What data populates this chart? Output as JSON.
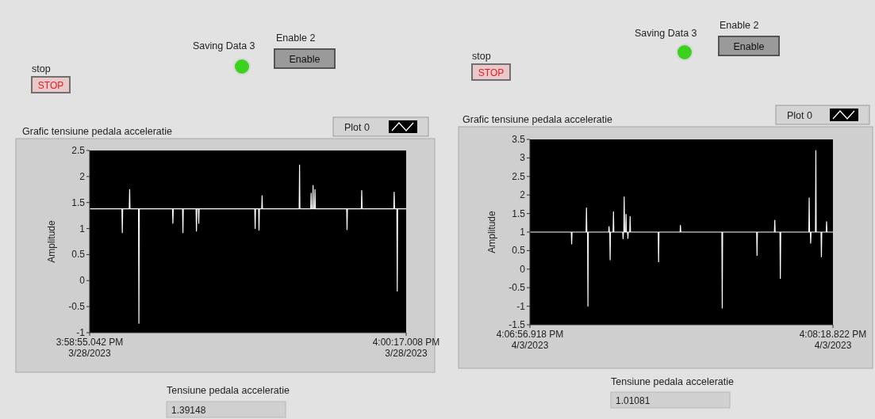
{
  "chart_data": [
    {
      "type": "line",
      "title": "Grafic tensiune pedala acceleratie",
      "ylabel": "Amplitude",
      "legend": "top right",
      "grid": false,
      "xlim": [
        "2023-03-28T15:58:55.042",
        "2023-03-28T16:00:17.008"
      ],
      "ylim": [
        -1,
        2.5
      ],
      "yticks": [
        -1,
        -0.5,
        0,
        0.5,
        1,
        1.5,
        2,
        2.5
      ],
      "xticks": [
        {
          "value": "2023-03-28T15:58:55.042",
          "label": "3:58:55.042 PM\n3/28/2023"
        },
        {
          "value": "2023-03-28T16:00:17.008",
          "label": "4:00:17.008 PM\n3/28/2023"
        }
      ],
      "annotations": [
        "stop",
        "STOP",
        "Saving Data 3",
        "Enable 2",
        "Enable",
        "Tensiune pedala acceleratie",
        "1.39148"
      ],
      "series": [
        {
          "name": "Plot 0",
          "color": "#ffffff",
          "x": [
            "2023-03-28T15:58:55.042",
            "2023-03-28T15:59:03.400",
            "2023-03-28T15:59:03.500",
            "2023-03-28T15:59:03.600",
            "2023-03-28T15:59:05.300",
            "2023-03-28T15:59:05.400",
            "2023-03-28T15:59:05.500",
            "2023-03-28T15:59:07.700",
            "2023-03-28T15:59:07.800",
            "2023-03-28T15:59:07.900",
            "2023-03-28T15:59:16.500",
            "2023-03-28T15:59:16.600",
            "2023-03-28T15:59:16.700",
            "2023-03-28T15:59:19.100",
            "2023-03-28T15:59:19.200",
            "2023-03-28T15:59:19.300",
            "2023-03-28T15:59:22.600",
            "2023-03-28T15:59:22.700",
            "2023-03-28T15:59:22.800",
            "2023-03-28T15:59:23.200",
            "2023-03-28T15:59:23.300",
            "2023-03-28T15:59:23.400",
            "2023-03-28T15:59:37.800",
            "2023-03-28T15:59:37.900",
            "2023-03-28T15:59:38.000",
            "2023-03-28T15:59:38.800",
            "2023-03-28T15:59:38.900",
            "2023-03-28T15:59:39.000",
            "2023-03-28T15:59:39.600",
            "2023-03-28T15:59:39.700",
            "2023-03-28T15:59:39.800",
            "2023-03-28T15:59:49.300",
            "2023-03-28T15:59:49.400",
            "2023-03-28T15:59:49.500",
            "2023-03-28T15:59:52.300",
            "2023-03-28T15:59:52.400",
            "2023-03-28T15:59:52.500",
            "2023-03-28T15:59:52.800",
            "2023-03-28T15:59:52.900",
            "2023-03-28T15:59:53.000",
            "2023-03-28T15:59:53.300",
            "2023-03-28T15:59:53.400",
            "2023-03-28T15:59:53.500",
            "2023-03-28T16:00:01.600",
            "2023-03-28T16:00:01.700",
            "2023-03-28T16:00:01.800",
            "2023-03-28T16:00:05.400",
            "2023-03-28T16:00:05.500",
            "2023-03-28T16:00:05.600",
            "2023-03-28T16:00:13.800",
            "2023-03-28T16:00:13.900",
            "2023-03-28T16:00:14.000",
            "2023-03-28T16:00:14.600",
            "2023-03-28T16:00:14.700",
            "2023-03-28T16:00:14.800",
            "2023-03-28T16:00:17.008"
          ],
          "values": [
            1.38,
            1.38,
            0.92,
            1.38,
            1.38,
            1.75,
            1.38,
            1.38,
            -0.82,
            1.38,
            1.38,
            1.1,
            1.38,
            1.38,
            0.92,
            1.38,
            1.38,
            0.95,
            1.38,
            1.38,
            1.1,
            1.38,
            1.38,
            1.0,
            1.38,
            1.38,
            0.97,
            1.38,
            1.38,
            1.63,
            1.38,
            1.38,
            2.22,
            1.38,
            1.38,
            1.68,
            1.38,
            1.38,
            1.83,
            1.38,
            1.38,
            1.75,
            1.38,
            1.38,
            0.98,
            1.38,
            1.38,
            1.73,
            1.38,
            1.38,
            1.7,
            1.38,
            1.38,
            -0.2,
            1.38,
            1.38
          ]
        }
      ]
    },
    {
      "type": "line",
      "title": "Grafic tensiune pedala acceleratie",
      "ylabel": "Amplitude",
      "legend": "top right",
      "grid": false,
      "xlim": [
        "2023-04-03T16:06:56.918",
        "2023-04-03T16:08:18.822"
      ],
      "ylim": [
        -1.5,
        3.5
      ],
      "yticks": [
        -1.5,
        -1,
        -0.5,
        0,
        0.5,
        1,
        1.5,
        2,
        2.5,
        3,
        3.5
      ],
      "xticks": [
        {
          "value": "2023-04-03T16:06:56.918",
          "label": "4:06:56.918 PM\n4/3/2023"
        },
        {
          "value": "2023-04-03T16:08:18.822",
          "label": "4:08:18.822 PM\n4/3/2023"
        }
      ],
      "annotations": [
        "stop",
        "STOP",
        "Saving Data 3",
        "Enable 2",
        "Enable",
        "Tensiune pedala acceleratie",
        "1.01081"
      ],
      "series": [
        {
          "name": "Plot 0",
          "color": "#ffffff",
          "x": [
            "2023-04-03T16:06:56.918",
            "2023-04-03T16:07:08.100",
            "2023-04-03T16:07:08.200",
            "2023-04-03T16:07:08.300",
            "2023-04-03T16:07:12.100",
            "2023-04-03T16:07:12.200",
            "2023-04-03T16:07:12.300",
            "2023-04-03T16:07:12.500",
            "2023-04-03T16:07:12.600",
            "2023-04-03T16:07:12.700",
            "2023-04-03T16:07:18.200",
            "2023-04-03T16:07:18.300",
            "2023-04-03T16:07:18.400",
            "2023-04-03T16:07:18.500",
            "2023-04-03T16:07:18.600",
            "2023-04-03T16:07:18.700",
            "2023-04-03T16:07:19.400",
            "2023-04-03T16:07:19.500",
            "2023-04-03T16:07:19.600",
            "2023-04-03T16:07:22.000",
            "2023-04-03T16:07:22.100",
            "2023-04-03T16:07:22.200",
            "2023-04-03T16:07:22.300",
            "2023-04-03T16:07:22.400",
            "2023-04-03T16:07:22.500",
            "2023-04-03T16:07:22.800",
            "2023-04-03T16:07:22.900",
            "2023-04-03T16:07:23.000",
            "2023-04-03T16:07:23.300",
            "2023-04-03T16:07:23.400",
            "2023-04-03T16:07:23.500",
            "2023-04-03T16:07:23.900",
            "2023-04-03T16:07:24.000",
            "2023-04-03T16:07:24.100",
            "2023-04-03T16:07:31.600",
            "2023-04-03T16:07:31.700",
            "2023-04-03T16:07:31.800",
            "2023-04-03T16:07:37.500",
            "2023-04-03T16:07:37.600",
            "2023-04-03T16:07:37.700",
            "2023-04-03T16:07:48.800",
            "2023-04-03T16:07:48.900",
            "2023-04-03T16:07:49.000",
            "2023-04-03T16:07:58.200",
            "2023-04-03T16:07:58.300",
            "2023-04-03T16:07:58.400",
            "2023-04-03T16:08:03.000",
            "2023-04-03T16:08:03.100",
            "2023-04-03T16:08:03.200",
            "2023-04-03T16:08:04.500",
            "2023-04-03T16:08:04.600",
            "2023-04-03T16:08:04.700",
            "2023-04-03T16:08:12.300",
            "2023-04-03T16:08:12.400",
            "2023-04-03T16:08:12.500",
            "2023-04-03T16:08:12.700",
            "2023-04-03T16:08:12.800",
            "2023-04-03T16:08:12.900",
            "2023-04-03T16:08:14.100",
            "2023-04-03T16:08:14.200",
            "2023-04-03T16:08:14.300",
            "2023-04-03T16:08:15.600",
            "2023-04-03T16:08:15.700",
            "2023-04-03T16:08:15.800",
            "2023-04-03T16:08:17.000",
            "2023-04-03T16:08:17.100",
            "2023-04-03T16:08:17.200",
            "2023-04-03T16:08:18.822"
          ],
          "values": [
            1.0,
            1.0,
            0.68,
            1.0,
            1.0,
            1.65,
            1.0,
            1.0,
            -1.0,
            1.0,
            1.0,
            1.15,
            1.0,
            1.0,
            0.25,
            1.0,
            1.0,
            1.55,
            1.0,
            1.0,
            0.82,
            1.0,
            1.0,
            1.95,
            1.0,
            1.0,
            1.48,
            1.0,
            1.0,
            0.83,
            1.0,
            1.0,
            1.42,
            1.0,
            1.0,
            0.2,
            1.0,
            1.0,
            1.18,
            1.0,
            1.0,
            -1.05,
            1.0,
            1.0,
            0.37,
            1.0,
            1.0,
            1.32,
            1.0,
            1.0,
            -0.25,
            1.0,
            1.0,
            1.92,
            1.0,
            1.0,
            0.7,
            1.0,
            1.0,
            3.2,
            1.0,
            1.0,
            0.33,
            1.0,
            1.0,
            1.28,
            1.0,
            1.0
          ]
        }
      ]
    }
  ]
}
